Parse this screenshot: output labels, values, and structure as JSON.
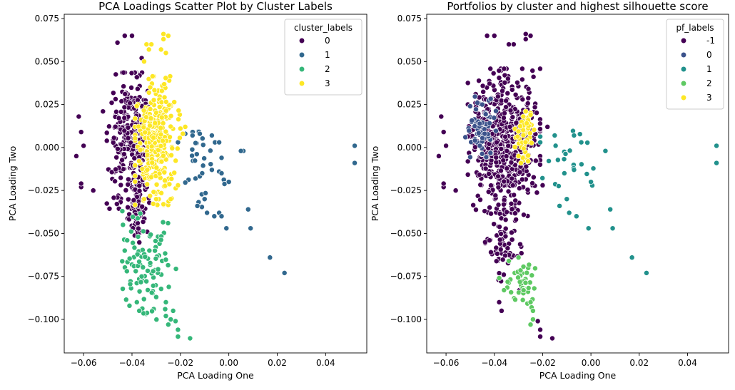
{
  "palette": {
    "viridis4": [
      "#440154",
      "#31688e",
      "#35b779",
      "#fde725"
    ],
    "viridis5": [
      "#440154",
      "#3b528b",
      "#21918c",
      "#5ec962",
      "#fde725"
    ]
  },
  "chart_data": [
    {
      "type": "scatter",
      "title": "PCA Loadings Scatter Plot by Cluster Labels",
      "xlabel": "PCA Loading One",
      "ylabel": "PCA Loading Two",
      "xlim": [
        -0.068,
        0.057
      ],
      "ylim": [
        -0.1195,
        0.0775
      ],
      "xticks": [
        -0.06,
        -0.04,
        -0.02,
        0.0,
        0.02,
        0.04
      ],
      "xtick_labels": [
        "−0.06",
        "−0.04",
        "−0.02",
        "0.00",
        "0.02",
        "0.04"
      ],
      "yticks": [
        0.075,
        0.05,
        0.025,
        0.0,
        -0.025,
        -0.05,
        -0.075,
        -0.1
      ],
      "ytick_labels": [
        "0.075",
        "0.050",
        "0.025",
        "0.000",
        "−0.025",
        "−0.050",
        "−0.075",
        "−0.100"
      ],
      "grid": false,
      "legend": {
        "title": "cluster_labels",
        "position": "top-right",
        "entries": [
          "0",
          "1",
          "2",
          "3"
        ]
      },
      "series": [
        {
          "label": "0",
          "color": "#440154",
          "blobs": [
            {
              "n": 280,
              "cx": -0.0405,
              "cy": 0.004,
              "sx": 0.0045,
              "sy": 0.018
            },
            {
              "n": 60,
              "cx": -0.0375,
              "cy": -0.035,
              "sx": 0.0025,
              "sy": 0.01
            }
          ],
          "points": [
            [
              -0.062,
              0.018
            ],
            [
              -0.061,
              0.009
            ],
            [
              -0.06,
              0.001
            ],
            [
              -0.063,
              -0.005
            ],
            [
              -0.061,
              -0.023
            ],
            [
              -0.061,
              -0.021
            ],
            [
              -0.056,
              -0.025
            ],
            [
              -0.052,
              0.021
            ],
            [
              -0.043,
              0.065
            ],
            [
              -0.04,
              0.065
            ],
            [
              -0.046,
              0.061
            ],
            [
              -0.036,
              0.052
            ]
          ]
        },
        {
          "label": "1",
          "color": "#31688e",
          "blobs": [
            {
              "n": 28,
              "cx": -0.012,
              "cy": -0.006,
              "sx": 0.005,
              "sy": 0.013
            }
          ],
          "points": [
            [
              -0.021,
              0.003
            ],
            [
              -0.018,
              0.008
            ],
            [
              -0.015,
              0.007
            ],
            [
              -0.012,
              0.008
            ],
            [
              -0.007,
              0.007
            ],
            [
              -0.004,
              0.003
            ],
            [
              0.006,
              -0.002
            ],
            [
              0.005,
              -0.002
            ],
            [
              -0.011,
              -0.015
            ],
            [
              -0.007,
              -0.013
            ],
            [
              -0.004,
              -0.014
            ],
            [
              -0.003,
              -0.015
            ],
            [
              0.0,
              -0.02
            ],
            [
              -0.01,
              -0.03
            ],
            [
              -0.013,
              -0.034
            ],
            [
              -0.009,
              -0.038
            ],
            [
              -0.006,
              -0.04
            ],
            [
              -0.004,
              -0.038
            ],
            [
              -0.003,
              -0.04
            ],
            [
              -0.001,
              -0.047
            ],
            [
              0.008,
              -0.036
            ],
            [
              0.009,
              -0.047
            ],
            [
              0.017,
              -0.064
            ],
            [
              0.023,
              -0.073
            ],
            [
              0.052,
              0.001
            ],
            [
              0.052,
              -0.009
            ]
          ]
        },
        {
          "label": "2",
          "color": "#35b779",
          "blobs": [
            {
              "n": 95,
              "cx": -0.0335,
              "cy": -0.07,
              "sx": 0.0055,
              "sy": 0.016
            }
          ],
          "points": [
            [
              -0.044,
              -0.037
            ],
            [
              -0.042,
              -0.054
            ],
            [
              -0.043,
              -0.06
            ],
            [
              -0.036,
              -0.075
            ],
            [
              -0.038,
              -0.09
            ],
            [
              -0.037,
              -0.095
            ],
            [
              -0.03,
              -0.087
            ],
            [
              -0.026,
              -0.098
            ],
            [
              -0.025,
              -0.103
            ],
            [
              -0.024,
              -0.1
            ],
            [
              -0.022,
              -0.101
            ],
            [
              -0.021,
              -0.106
            ],
            [
              -0.021,
              -0.11
            ],
            [
              -0.016,
              -0.111
            ],
            [
              -0.023,
              -0.095
            ],
            [
              -0.026,
              -0.09
            ]
          ]
        },
        {
          "label": "3",
          "color": "#fde725",
          "blobs": [
            {
              "n": 300,
              "cx": -0.0295,
              "cy": 0.004,
              "sx": 0.0042,
              "sy": 0.017
            }
          ],
          "points": [
            [
              -0.027,
              0.066
            ],
            [
              -0.025,
              0.065
            ],
            [
              -0.027,
              0.063
            ],
            [
              -0.032,
              0.06
            ],
            [
              -0.034,
              0.06
            ],
            [
              -0.033,
              0.057
            ],
            [
              -0.028,
              0.057
            ],
            [
              -0.026,
              0.055
            ],
            [
              -0.035,
              0.05
            ],
            [
              -0.018,
              0.012
            ],
            [
              -0.019,
              0.008
            ],
            [
              -0.02,
              0.011
            ],
            [
              -0.035,
              -0.03
            ],
            [
              -0.03,
              -0.03
            ],
            [
              -0.027,
              -0.033
            ],
            [
              -0.024,
              -0.03
            ],
            [
              -0.021,
              -0.022
            ]
          ]
        }
      ]
    },
    {
      "type": "scatter",
      "title": "Portfolios by cluster and highest silhouette score",
      "xlabel": "PCA Loading One",
      "ylabel": "PCA Loading Two",
      "xlim": [
        -0.068,
        0.057
      ],
      "ylim": [
        -0.1195,
        0.0775
      ],
      "xticks": [
        -0.06,
        -0.04,
        -0.02,
        0.0,
        0.02,
        0.04
      ],
      "xtick_labels": [
        "−0.06",
        "−0.04",
        "−0.02",
        "0.00",
        "0.02",
        "0.04"
      ],
      "yticks": [
        0.075,
        0.05,
        0.025,
        0.0,
        -0.025,
        -0.05,
        -0.075,
        -0.1
      ],
      "ytick_labels": [
        "0.075",
        "0.050",
        "0.025",
        "0.000",
        "−0.025",
        "−0.050",
        "−0.075",
        "−0.100"
      ],
      "grid": false,
      "legend": {
        "title": "pf_labels",
        "position": "top-right",
        "entries": [
          "-1",
          "0",
          "1",
          "2",
          "3"
        ]
      },
      "series": [
        {
          "label": "-1",
          "color": "#440154",
          "blobs": [
            {
              "n": 520,
              "cx": -0.036,
              "cy": 0.004,
              "sx": 0.0068,
              "sy": 0.019
            },
            {
              "n": 70,
              "cx": -0.035,
              "cy": -0.055,
              "sx": 0.004,
              "sy": 0.014
            }
          ],
          "points": [
            [
              -0.062,
              0.018
            ],
            [
              -0.061,
              0.009
            ],
            [
              -0.06,
              0.001
            ],
            [
              -0.063,
              -0.005
            ],
            [
              -0.061,
              -0.023
            ],
            [
              -0.061,
              -0.021
            ],
            [
              -0.056,
              -0.025
            ],
            [
              -0.043,
              0.065
            ],
            [
              -0.04,
              0.065
            ],
            [
              -0.027,
              0.066
            ],
            [
              -0.025,
              0.065
            ],
            [
              -0.027,
              0.063
            ],
            [
              -0.032,
              0.06
            ],
            [
              -0.034,
              0.06
            ],
            [
              -0.018,
              0.012
            ],
            [
              -0.02,
              -0.022
            ],
            [
              -0.044,
              -0.037
            ],
            [
              -0.042,
              -0.054
            ],
            [
              -0.038,
              -0.09
            ],
            [
              -0.037,
              -0.095
            ],
            [
              -0.022,
              -0.101
            ],
            [
              -0.021,
              -0.106
            ],
            [
              -0.021,
              -0.11
            ],
            [
              -0.016,
              -0.111
            ]
          ]
        },
        {
          "label": "0",
          "color": "#3b528b",
          "blobs": [
            {
              "n": 55,
              "cx": -0.0455,
              "cy": 0.012,
              "sx": 0.0028,
              "sy": 0.008
            }
          ],
          "points": [
            [
              -0.05,
              0.024
            ],
            [
              -0.047,
              0.026
            ],
            [
              -0.045,
              0.025
            ],
            [
              -0.048,
              0.004
            ],
            [
              -0.052,
              0.006
            ],
            [
              -0.046,
              0.001
            ],
            [
              -0.044,
              0.008
            ]
          ]
        },
        {
          "label": "1",
          "color": "#21918c",
          "blobs": [
            {
              "n": 20,
              "cx": -0.01,
              "cy": -0.006,
              "sx": 0.005,
              "sy": 0.013
            }
          ],
          "points": [
            [
              -0.021,
              0.003
            ],
            [
              -0.015,
              0.007
            ],
            [
              -0.007,
              0.007
            ],
            [
              -0.004,
              0.003
            ],
            [
              0.006,
              -0.002
            ],
            [
              -0.011,
              -0.015
            ],
            [
              -0.007,
              -0.013
            ],
            [
              0.0,
              -0.02
            ],
            [
              -0.01,
              -0.03
            ],
            [
              -0.013,
              -0.034
            ],
            [
              -0.009,
              -0.038
            ],
            [
              -0.006,
              -0.04
            ],
            [
              -0.001,
              -0.047
            ],
            [
              0.008,
              -0.036
            ],
            [
              0.009,
              -0.047
            ],
            [
              0.017,
              -0.064
            ],
            [
              0.023,
              -0.073
            ],
            [
              0.052,
              0.001
            ],
            [
              0.052,
              -0.009
            ]
          ]
        },
        {
          "label": "2",
          "color": "#5ec962",
          "blobs": [
            {
              "n": 40,
              "cx": -0.0285,
              "cy": -0.079,
              "sx": 0.0028,
              "sy": 0.0065
            }
          ],
          "points": [
            [
              -0.034,
              -0.066
            ],
            [
              -0.03,
              -0.064
            ],
            [
              -0.038,
              -0.076
            ],
            [
              -0.036,
              -0.083
            ],
            [
              -0.025,
              -0.09
            ],
            [
              -0.024,
              -0.095
            ],
            [
              -0.024,
              -0.1
            ],
            [
              -0.025,
              -0.103
            ]
          ]
        },
        {
          "label": "3",
          "color": "#fde725",
          "blobs": [
            {
              "n": 45,
              "cx": -0.0275,
              "cy": 0.006,
              "sx": 0.0018,
              "sy": 0.007
            }
          ],
          "points": [
            [
              -0.028,
              0.018
            ],
            [
              -0.025,
              0.019
            ],
            [
              -0.027,
              0.021
            ],
            [
              -0.03,
              -0.005
            ],
            [
              -0.026,
              -0.008
            ],
            [
              -0.029,
              -0.009
            ]
          ]
        }
      ]
    }
  ]
}
